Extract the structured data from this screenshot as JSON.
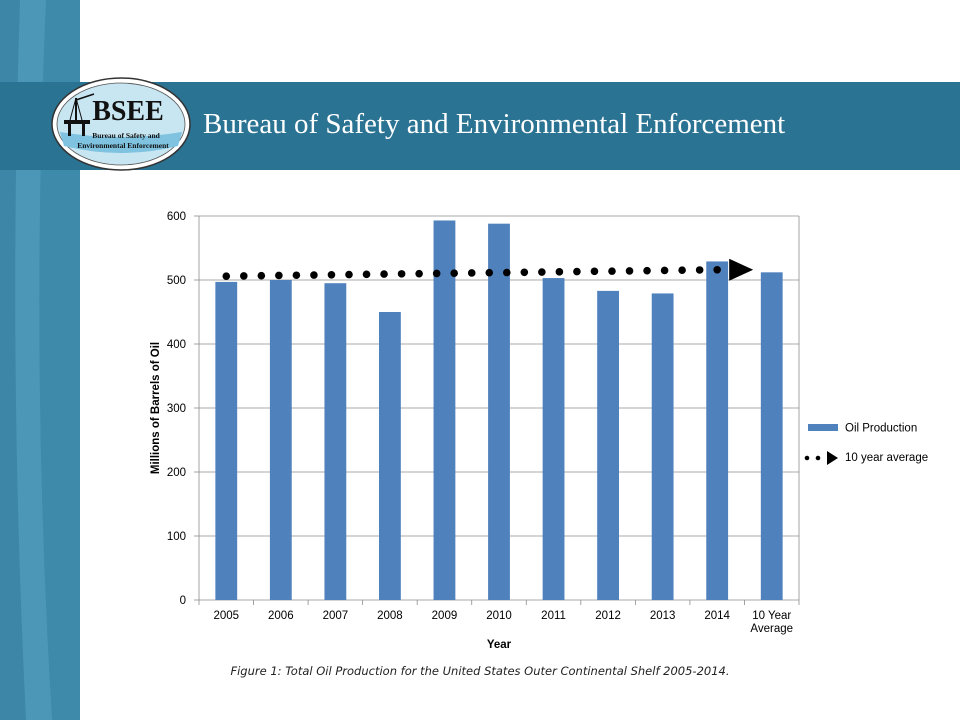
{
  "header": {
    "title": "Bureau of Safety and Environmental Enforcement",
    "logo_text": "BSEE",
    "logo_subtext_line1": "Bureau of Safety and",
    "logo_subtext_line2": "Environmental Enforcement"
  },
  "caption": "Figure 1: Total Oil Production for the United States Outer Continental Shelf 2005-2014.",
  "colors": {
    "banner": "#2b7393",
    "sidebar": "#3d8aab",
    "bar": "#4f81bd",
    "average_line": "#000000"
  },
  "chart_data": {
    "type": "bar",
    "categories": [
      "2005",
      "2006",
      "2007",
      "2008",
      "2009",
      "2010",
      "2011",
      "2012",
      "2013",
      "2014",
      "10 Year Average"
    ],
    "series": [
      {
        "name": "Oil Production",
        "values": [
          497,
          500,
          495,
          450,
          593,
          588,
          503,
          483,
          479,
          529,
          512
        ]
      }
    ],
    "average_line": {
      "name": "10 year average",
      "start": 506,
      "end": 516
    },
    "ylabel": "Millions of Barrels of Oil",
    "xlabel": "Year",
    "ylim": [
      0,
      600
    ],
    "yticks": [
      0,
      100,
      200,
      300,
      400,
      500,
      600
    ],
    "grid": true,
    "legend": "right"
  }
}
